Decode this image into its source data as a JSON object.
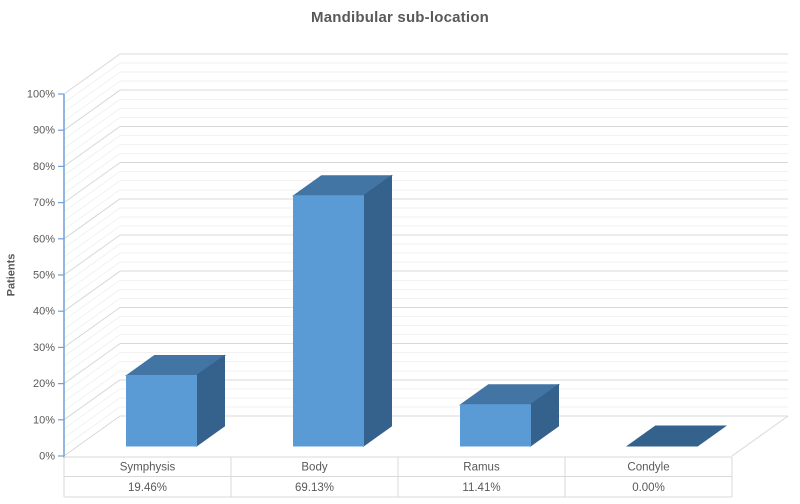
{
  "chart_data": {
    "type": "bar",
    "projection": "3d-column",
    "title": "Mandibular sub-location",
    "ylabel": "Patients",
    "xlabel": "",
    "categories": [
      "Symphysis",
      "Body",
      "Ramus",
      "Condyle"
    ],
    "values": [
      19.46,
      69.13,
      11.41,
      0.0
    ],
    "value_labels": [
      "19.46%",
      "69.13%",
      "11.41%",
      "0.00%"
    ],
    "y_tick_labels": [
      "0%",
      "10%",
      "20%",
      "30%",
      "40%",
      "50%",
      "60%",
      "70%",
      "80%",
      "90%",
      "100%"
    ],
    "ylim": [
      0,
      100
    ],
    "major_unit": 10,
    "minor_unit": 2.5,
    "grid": true,
    "legend": false,
    "show_data_table": true,
    "colors": {
      "bar_front": "#5B9BD5",
      "bar_top": "#4274A4",
      "bar_side": "#35618D",
      "axis": "#6FA0D6",
      "grid_major": "#D8D8D8",
      "grid_minor": "#F2F2F2",
      "table_border": "#D9D9D9",
      "text": "#595959",
      "background": "#FFFFFF"
    }
  }
}
